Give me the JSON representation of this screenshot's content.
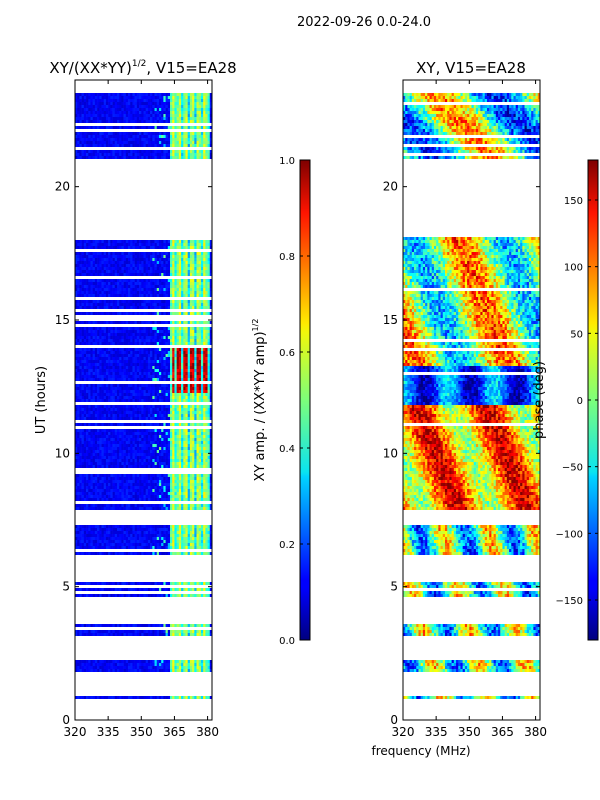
{
  "suptitle": "2022-09-26 0.0-24.0",
  "chart_data": [
    {
      "type": "heatmap",
      "title": "XY/(XX*YY)",
      "title_sup": "1/2",
      "title_tail": ", V15=EA28",
      "xlabel": "",
      "ylabel": "UT (hours)",
      "xlim": [
        320,
        382
      ],
      "ylim": [
        0,
        24
      ],
      "xticks": [
        "320",
        "335",
        "350",
        "365",
        "380"
      ],
      "xtick_values": [
        320,
        335,
        350,
        365,
        380
      ],
      "yticks": [
        "0",
        "5",
        "10",
        "15",
        "20"
      ],
      "ytick_values": [
        0,
        5,
        10,
        15,
        20
      ],
      "data_bands_hours": [
        [
          0.4,
          0.5
        ],
        [
          0.8,
          0.95
        ],
        [
          1.8,
          2.3
        ],
        [
          3.1,
          3.6
        ],
        [
          4.6,
          5.2
        ],
        [
          6.2,
          7.3
        ],
        [
          7.9,
          18.1
        ],
        [
          21.0,
          23.5
        ]
      ],
      "gap_hours": [
        [
          18.1,
          21.0
        ]
      ],
      "notes": "Mostly low amplitude (dark blue) with bright vertical streaks near 363-380 MHz; strongest values (~1.0) around 12-14 UT between 363 and 380 MHz.",
      "colorbar": {
        "label": "XY amp. / (XX*YY amp)",
        "label_sup": "1/2",
        "range": [
          0.0,
          1.0
        ],
        "ticks": [
          "0.0",
          "0.2",
          "0.4",
          "0.6",
          "0.8",
          "1.0"
        ],
        "tick_values": [
          0.0,
          0.2,
          0.4,
          0.6,
          0.8,
          1.0
        ],
        "colormap": "jet"
      }
    },
    {
      "type": "heatmap",
      "title": "XY, V15=EA28",
      "xlabel": "frequency (MHz)",
      "ylabel": "",
      "xlim": [
        320,
        382
      ],
      "ylim": [
        0,
        24
      ],
      "xticks": [
        "320",
        "335",
        "350",
        "365",
        "380"
      ],
      "xtick_values": [
        320,
        335,
        350,
        365,
        380
      ],
      "yticks": [
        "0",
        "5",
        "10",
        "15",
        "20"
      ],
      "ytick_values": [
        0,
        5,
        10,
        15,
        20
      ],
      "data_bands_hours": [
        [
          0.4,
          0.5
        ],
        [
          0.8,
          0.95
        ],
        [
          1.8,
          2.3
        ],
        [
          3.1,
          3.6
        ],
        [
          4.6,
          5.2
        ],
        [
          6.2,
          7.3
        ],
        [
          7.9,
          18.1
        ],
        [
          21.0,
          23.5
        ]
      ],
      "gap_hours": [
        [
          18.1,
          21.0
        ]
      ],
      "notes": "Phase varies across the full range; large red/orange (positive phase) regions between 8-13 UT, blue/cyan regions near 12-13 UT.",
      "colorbar": {
        "label": "phase (deg)",
        "range": [
          -180,
          180
        ],
        "ticks": [
          "−150",
          "−100",
          "−50",
          "0",
          "50",
          "100",
          "150"
        ],
        "tick_values": [
          -150,
          -100,
          -50,
          0,
          50,
          100,
          150
        ],
        "colormap": "jet"
      }
    }
  ]
}
